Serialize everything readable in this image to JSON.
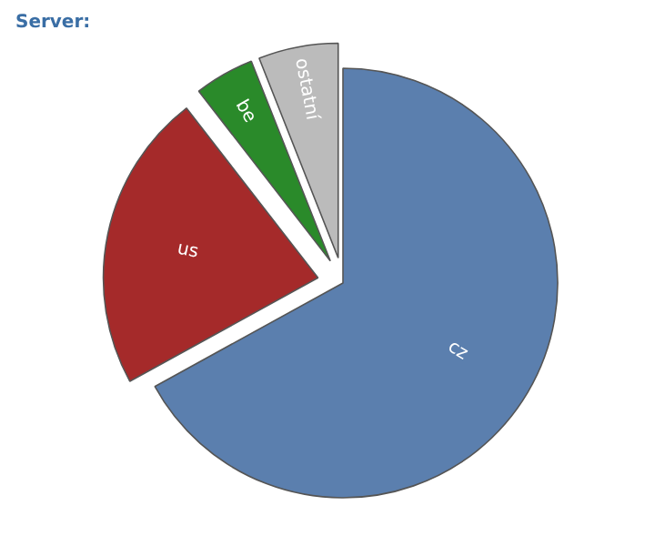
{
  "chart_data": {
    "type": "pie",
    "title": "Server:",
    "categories": [
      "cz",
      "us",
      "be",
      "ostatní"
    ],
    "values": [
      67,
      22.5,
      4.5,
      6
    ],
    "colors": [
      "#5b7fae",
      "#a52a2a",
      "#2a8a2a",
      "#bbbbbb"
    ]
  }
}
